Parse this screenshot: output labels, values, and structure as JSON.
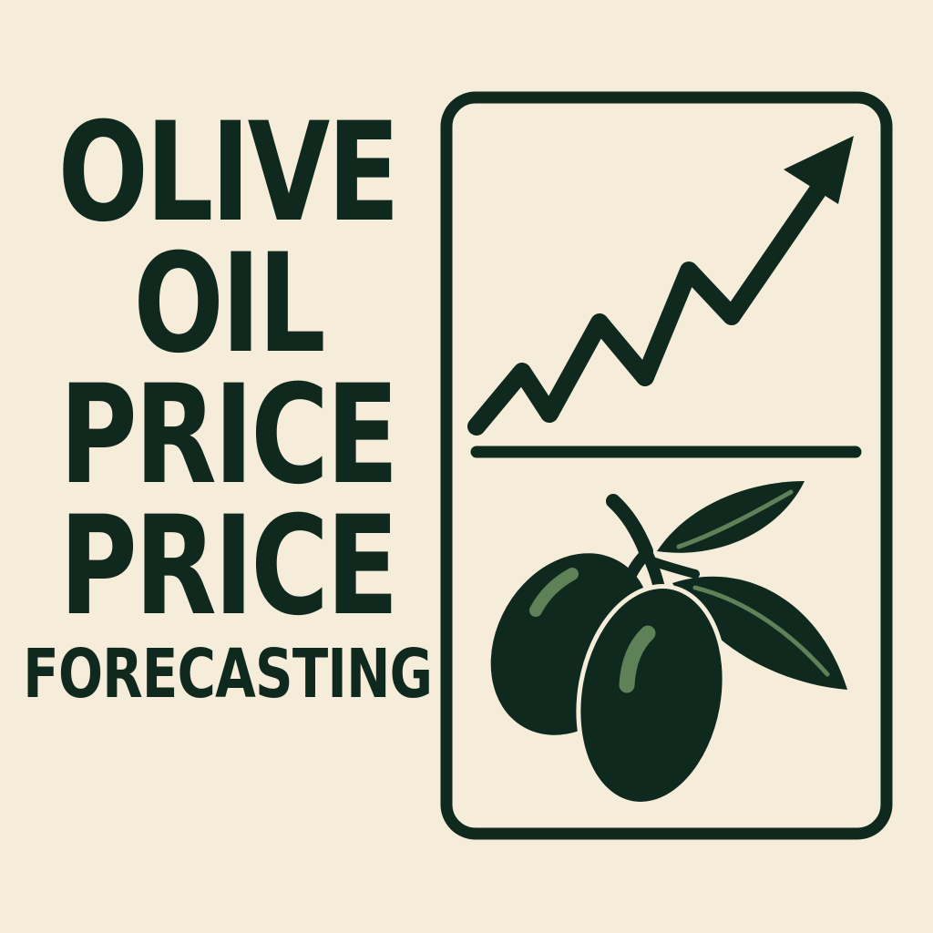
{
  "title": {
    "lines": [
      "OLIVE",
      "OIL",
      "PRICE",
      "PRICE"
    ],
    "subtitle": "FORECASTING"
  },
  "icons": {
    "chart": "trend-up-arrow-icon",
    "olives": "olive-branch-icon"
  },
  "colors": {
    "background": "#f5ecd9",
    "ink": "#10291f",
    "highlight": "#5f8157"
  }
}
